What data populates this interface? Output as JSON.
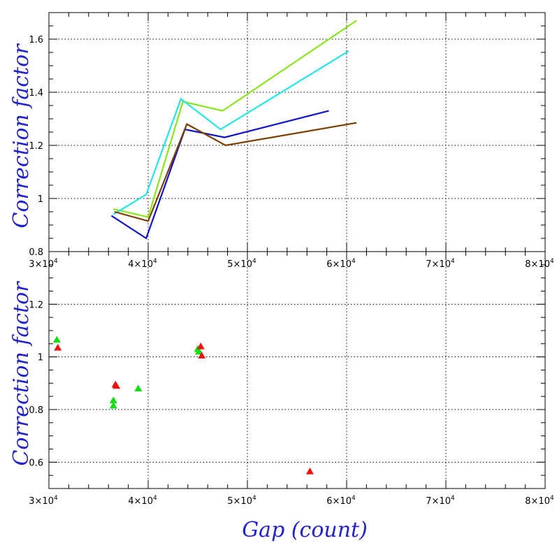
{
  "chart_data": [
    {
      "type": "line",
      "title": "",
      "xlabel": "",
      "ylabel": "Correction factor",
      "xlim": [
        30000,
        80000
      ],
      "ylim": [
        0.8,
        1.7
      ],
      "grid": true,
      "x_ticks": [
        {
          "value": 30000,
          "mantissa": "3",
          "sup": "4"
        },
        {
          "value": 40000,
          "mantissa": "4",
          "sup": "4"
        },
        {
          "value": 50000,
          "mantissa": "5",
          "sup": "4"
        },
        {
          "value": 60000,
          "mantissa": "6",
          "sup": "4"
        },
        {
          "value": 70000,
          "mantissa": "7",
          "sup": "4"
        },
        {
          "value": 80000,
          "mantissa": "8",
          "sup": "4"
        }
      ],
      "y_ticks": [
        {
          "value": 0.8,
          "label": "0.8"
        },
        {
          "value": 1.0,
          "label": "1"
        },
        {
          "value": 1.2,
          "label": "1.2"
        },
        {
          "value": 1.4,
          "label": "1.4"
        },
        {
          "value": 1.6,
          "label": "1.6"
        }
      ],
      "series": [
        {
          "color": "#88e61a",
          "x": [
            36500,
            40000,
            43500,
            47500,
            61000
          ],
          "y": [
            0.96,
            0.93,
            1.365,
            1.33,
            1.67
          ]
        },
        {
          "color": "#22e6e6",
          "x": [
            36500,
            39800,
            43300,
            47300,
            60200
          ],
          "y": [
            0.94,
            1.015,
            1.375,
            1.26,
            1.555
          ]
        },
        {
          "color": "#1111cc",
          "x": [
            36300,
            39800,
            43700,
            47700,
            58200
          ],
          "y": [
            0.935,
            0.85,
            1.26,
            1.23,
            1.33
          ]
        },
        {
          "color": "#7b3f00",
          "x": [
            36600,
            40000,
            43900,
            47800,
            61000
          ],
          "y": [
            0.95,
            0.915,
            1.28,
            1.2,
            1.285
          ]
        }
      ]
    },
    {
      "type": "scatter",
      "title": "",
      "xlabel": "Gap (count)",
      "ylabel": "Correction factor",
      "xlim": [
        30000,
        80000
      ],
      "ylim": [
        0.5,
        1.4
      ],
      "grid": true,
      "x_ticks": [
        {
          "value": 30000,
          "mantissa": "3",
          "sup": "4"
        },
        {
          "value": 40000,
          "mantissa": "4",
          "sup": "4"
        },
        {
          "value": 50000,
          "mantissa": "5",
          "sup": "4"
        },
        {
          "value": 60000,
          "mantissa": "6",
          "sup": "4"
        },
        {
          "value": 70000,
          "mantissa": "7",
          "sup": "4"
        },
        {
          "value": 80000,
          "mantissa": "8",
          "sup": "4"
        }
      ],
      "y_ticks": [
        {
          "value": 0.6,
          "label": "0.6"
        },
        {
          "value": 0.8,
          "label": "0.8"
        },
        {
          "value": 1.0,
          "label": "1"
        },
        {
          "value": 1.2,
          "label": "1.2"
        }
      ],
      "series": [
        {
          "color": "#11dd11",
          "marker": "triangle",
          "x": [
            30800,
            36500,
            36500,
            39000,
            45000,
            45100
          ],
          "y": [
            1.065,
            0.835,
            0.815,
            0.88,
            1.03,
            1.02
          ]
        },
        {
          "color": "#ee1111",
          "marker": "triangle",
          "x": [
            30900,
            36700,
            36800,
            45300,
            45400,
            56300
          ],
          "y": [
            1.035,
            0.895,
            0.89,
            1.04,
            1.005,
            0.565
          ]
        }
      ]
    }
  ],
  "x_tick_base": "×10",
  "axis_titles": {
    "top_y": "Correction factor",
    "bottom_y": "Correction factor",
    "bottom_x": "Gap (count)"
  }
}
